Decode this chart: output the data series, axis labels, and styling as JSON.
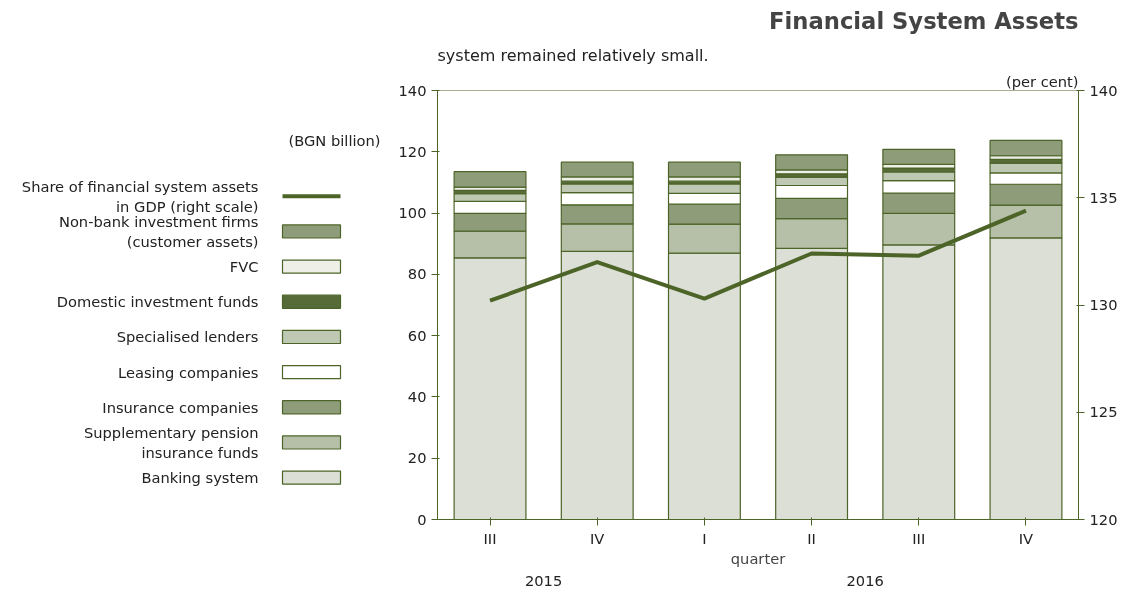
{
  "chart_data": {
    "type": "bar",
    "stacked": true,
    "title": "Financial System Assets",
    "ylabel": "(BGN billion)",
    "y2label": "(per cent)",
    "xlabel": "quarter",
    "categories": [
      "III",
      "IV",
      "I",
      "II",
      "III",
      "IV"
    ],
    "annotations": [
      "2015",
      "2016",
      "system remained relatively small."
    ],
    "series": [
      {
        "name": "Banking system",
        "color": "#dcdfd5",
        "values": [
          85.4,
          87.5,
          86.9,
          88.5,
          89.6,
          91.9
        ]
      },
      {
        "name": "Supplementary pension\ninsurance funds",
        "color": "#b6c0a9",
        "values": [
          8.7,
          9.0,
          9.5,
          9.7,
          10.3,
          10.7
        ]
      },
      {
        "name": "Insurance companies",
        "color": "#8f9c7a",
        "values": [
          5.8,
          6.2,
          6.5,
          6.6,
          6.6,
          6.8
        ]
      },
      {
        "name": "Leasing companies",
        "color": "#ffffff",
        "values": [
          3.9,
          4.0,
          3.5,
          4.2,
          4.1,
          3.7
        ]
      },
      {
        "name": "Specialised lenders",
        "color": "#bec8b2",
        "values": [
          2.5,
          2.8,
          3.1,
          2.7,
          2.8,
          3.2
        ]
      },
      {
        "name": "Domestic investment funds",
        "color": "#566b37",
        "values": [
          1.1,
          0.9,
          0.9,
          1.1,
          1.3,
          1.2
        ]
      },
      {
        "name": "FVC",
        "color": "#eef0e8",
        "values": [
          1.1,
          1.4,
          1.4,
          1.3,
          1.2,
          1.2
        ]
      },
      {
        "name": "Non-bank investment firms\n(customer assets)",
        "color": "#8f9c7a",
        "values": [
          5.0,
          4.8,
          4.8,
          4.9,
          4.9,
          5.0
        ]
      },
      {
        "name": "Share of financial system assets\nin GDP (right scale)",
        "type": "line",
        "axis": "y2",
        "color": "#4d6428",
        "values": [
          130.2,
          132.0,
          130.3,
          132.4,
          132.3,
          134.4
        ]
      }
    ],
    "ylim": [
      0,
      140
    ],
    "yticks": [
      0,
      20,
      40,
      60,
      80,
      100,
      120,
      140
    ],
    "y2lim": [
      120,
      140
    ],
    "y2ticks": [
      120,
      125,
      130,
      135,
      140
    ],
    "grid": false,
    "legend": "left"
  }
}
